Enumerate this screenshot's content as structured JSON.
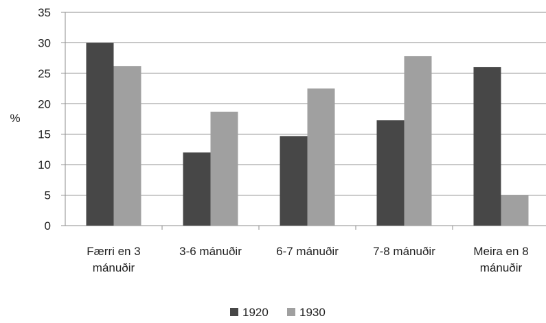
{
  "chart_data": {
    "type": "bar",
    "title": "",
    "xlabel": "",
    "ylabel": "%",
    "ylim": [
      0,
      35
    ],
    "yticks": [
      0,
      5,
      10,
      15,
      20,
      25,
      30,
      35
    ],
    "grid": true,
    "legend_position": "bottom",
    "categories": [
      [
        "Færri en 3",
        "mánuðir"
      ],
      [
        "3-6 mánuðir"
      ],
      [
        "6-7 mánuðir"
      ],
      [
        "7-8 mánuðir"
      ],
      [
        "Meira en 8",
        "mánuðir"
      ]
    ],
    "series": [
      {
        "name": "1920",
        "color": "#474747",
        "values": [
          30.0,
          12.0,
          14.7,
          17.3,
          26.0
        ]
      },
      {
        "name": "1930",
        "color": "#a0a0a0",
        "values": [
          26.2,
          18.7,
          22.5,
          27.8,
          5.0
        ]
      }
    ]
  }
}
